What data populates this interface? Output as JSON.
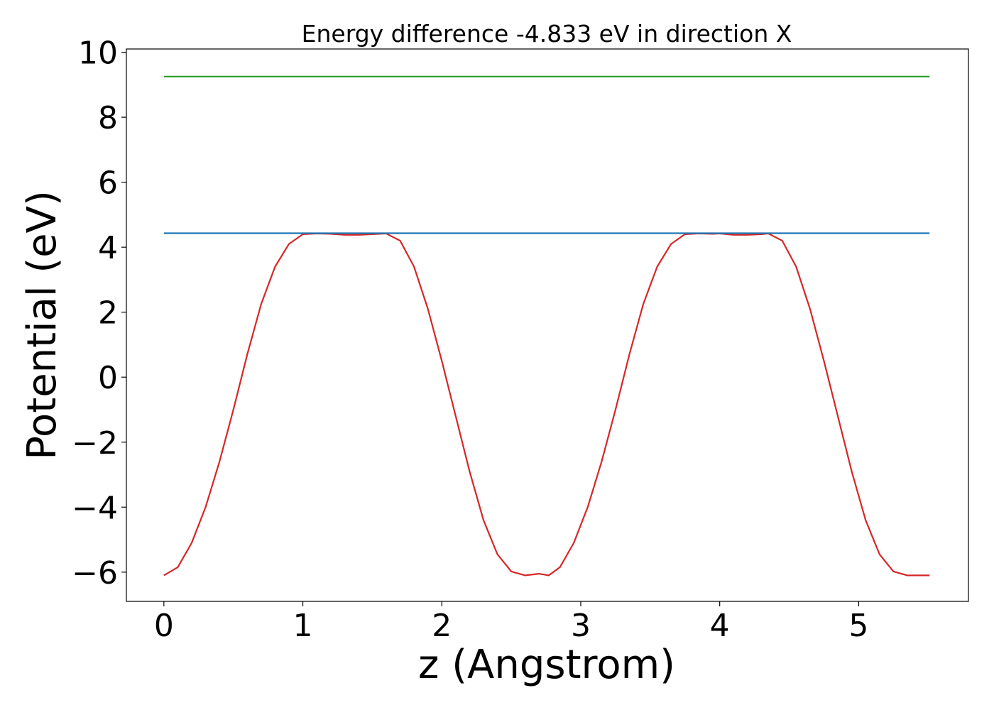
{
  "chart_data": {
    "type": "line",
    "title": "Energy difference -4.833 eV in direction X",
    "xlabel": "z (Angstrom)",
    "ylabel": "Potential (eV)",
    "xlim": [
      -0.27,
      5.79
    ],
    "ylim": [
      -6.9,
      10.1
    ],
    "xticks": [
      0,
      1,
      2,
      3,
      4,
      5
    ],
    "xtick_labels": [
      "0",
      "1",
      "2",
      "3",
      "4",
      "5"
    ],
    "yticks": [
      -6,
      -4,
      -2,
      0,
      2,
      4,
      6,
      8,
      10
    ],
    "ytick_labels": [
      "−6",
      "−4",
      "−2",
      "0",
      "2",
      "4",
      "6",
      "8",
      "10"
    ],
    "grid": false,
    "series": [
      {
        "color": "#d62728",
        "x": [
          0.0,
          0.1,
          0.2,
          0.3,
          0.4,
          0.5,
          0.6,
          0.7,
          0.8,
          0.9,
          1.0,
          1.1,
          1.2,
          1.3,
          1.4,
          1.5,
          1.6,
          1.7,
          1.8,
          1.9,
          2.0,
          2.1,
          2.2,
          2.3,
          2.4,
          2.5,
          2.6,
          2.7,
          2.77,
          2.85,
          2.95,
          3.05,
          3.15,
          3.25,
          3.35,
          3.45,
          3.55,
          3.65,
          3.75,
          3.85,
          3.95,
          4.0,
          4.1,
          4.2,
          4.3,
          4.35,
          4.45,
          4.55,
          4.65,
          4.75,
          4.85,
          4.95,
          5.05,
          5.15,
          5.25,
          5.35,
          5.45,
          5.51
        ],
        "y": [
          -6.1,
          -5.85,
          -5.1,
          -4.0,
          -2.6,
          -1.0,
          0.7,
          2.25,
          3.4,
          4.1,
          4.4,
          4.42,
          4.41,
          4.38,
          4.38,
          4.4,
          4.42,
          4.2,
          3.4,
          2.1,
          0.5,
          -1.2,
          -2.9,
          -4.4,
          -5.45,
          -5.98,
          -6.1,
          -6.05,
          -6.1,
          -5.85,
          -5.1,
          -4.0,
          -2.6,
          -1.0,
          0.7,
          2.25,
          3.4,
          4.1,
          4.4,
          4.42,
          4.41,
          4.42,
          4.38,
          4.38,
          4.4,
          4.42,
          4.2,
          3.4,
          2.1,
          0.5,
          -1.2,
          -2.9,
          -4.4,
          -5.45,
          -5.98,
          -6.1,
          -6.1,
          -6.1
        ]
      },
      {
        "color": "#1f77b4",
        "x": [
          0.0,
          5.51
        ],
        "y": [
          4.43,
          4.43
        ]
      },
      {
        "color": "#2ca02c",
        "x": [
          0.0,
          5.51
        ],
        "y": [
          9.25,
          9.25
        ]
      }
    ]
  }
}
